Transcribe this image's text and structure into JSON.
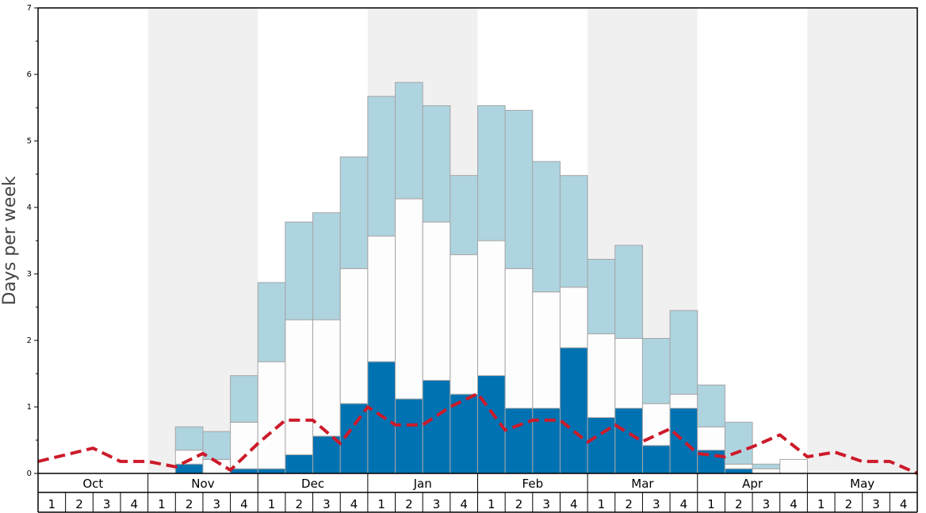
{
  "chart_data": {
    "type": "bar",
    "title": "",
    "xlabel": "",
    "ylabel": "Days per week",
    "ylim": [
      0,
      7
    ],
    "yticks": [
      "0",
      "1",
      "2",
      "3",
      "4",
      "5",
      "6",
      "7"
    ],
    "months": [
      "Oct",
      "Nov",
      "Dec",
      "Jan",
      "Feb",
      "Mar",
      "Apr",
      "May"
    ],
    "weeks": [
      "1",
      "2",
      "3",
      "4"
    ],
    "stacked": true,
    "series": [
      {
        "values": [
          0,
          0,
          0,
          0,
          0,
          0.14,
          0,
          0.07,
          0.07,
          0.28,
          0.56,
          1.05,
          1.68,
          1.12,
          1.4,
          1.19,
          1.47,
          0.98,
          0.98,
          1.89,
          0.84,
          0.98,
          0.42,
          0.98,
          0.35,
          0.07,
          0,
          0,
          0,
          0,
          0,
          0
        ]
      },
      {
        "values": [
          0,
          0,
          0,
          0,
          0,
          0.21,
          0.21,
          0.7,
          1.61,
          2.03,
          1.75,
          2.03,
          1.89,
          3.01,
          2.38,
          2.1,
          2.03,
          2.1,
          1.75,
          0.91,
          1.26,
          1.05,
          0.63,
          0.21,
          0.35,
          0.07,
          0.07,
          0.21,
          0,
          0,
          0,
          0
        ]
      },
      {
        "values": [
          0,
          0,
          0,
          0,
          0,
          0.35,
          0.42,
          0.7,
          1.19,
          1.47,
          1.61,
          1.68,
          2.1,
          1.75,
          1.75,
          1.19,
          2.03,
          2.38,
          1.96,
          1.68,
          1.12,
          1.4,
          0.98,
          1.26,
          0.63,
          0.63,
          0.07,
          0,
          0,
          0,
          0,
          0
        ]
      }
    ],
    "line": [
      0.18,
      0.28,
      0.38,
      0.18,
      0.18,
      0.1,
      0.3,
      0.05,
      0.45,
      0.8,
      0.8,
      0.45,
      1.0,
      0.73,
      0.73,
      1.0,
      1.2,
      0.65,
      0.8,
      0.8,
      0.47,
      0.73,
      0.48,
      0.67,
      0.3,
      0.25,
      0.4,
      0.58,
      0.25,
      0.32,
      0.18,
      0.18,
      0.0
    ],
    "colors": {
      "band": "#f0f0f0",
      "bottom": "#0072b2",
      "middle": "#fdfdfd",
      "top": "#aed4e0",
      "bar_stroke": "#a5a5a5",
      "line": "#cc1a2a",
      "axis": "#000000"
    }
  }
}
